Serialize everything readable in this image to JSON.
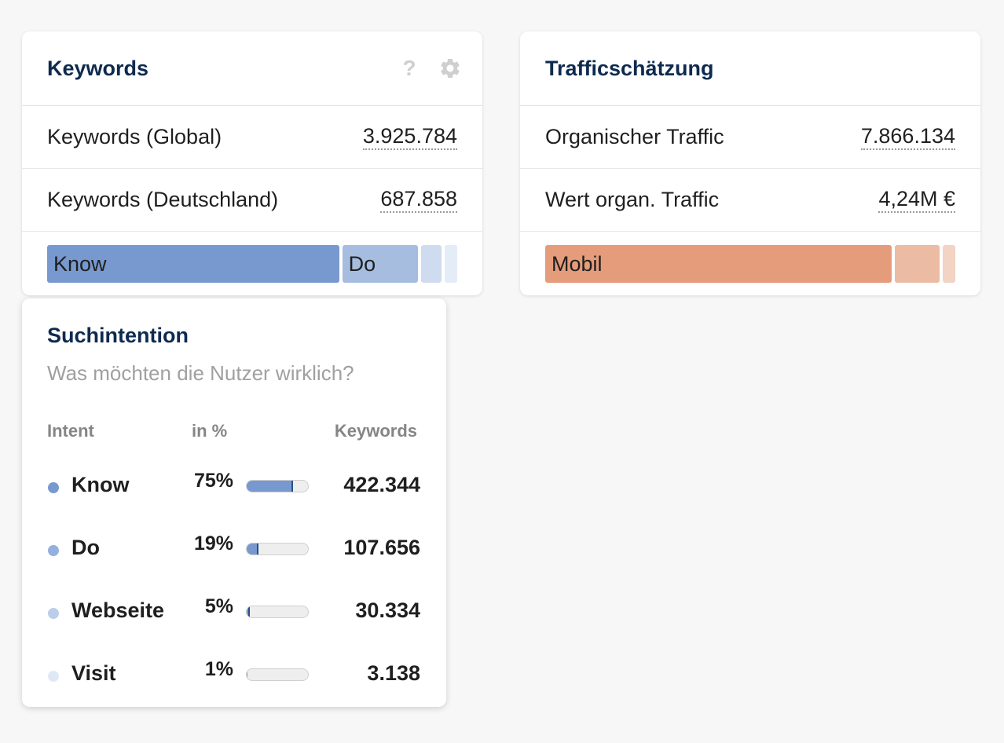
{
  "keywords_card": {
    "title": "Keywords",
    "help_icon": "question-icon",
    "settings_icon": "gear-icon",
    "rows": [
      {
        "label": "Keywords (Global)",
        "value": "3.925.784"
      },
      {
        "label": "Keywords (Deutschland)",
        "value": "687.858"
      }
    ],
    "intent_bar": [
      {
        "label": "Know",
        "share": 75,
        "color": "#7899cf"
      },
      {
        "label": "Do",
        "share": 19,
        "color": "#a6bde0"
      },
      {
        "label": "",
        "share": 5,
        "color": "#cfdcef"
      },
      {
        "label": "",
        "share": 1,
        "color": "#e4ecf7"
      }
    ]
  },
  "traffic_card": {
    "title": "Trafficschätzung",
    "rows": [
      {
        "label": "Organischer Traffic",
        "value": "7.866.134"
      },
      {
        "label": "Wert organ. Traffic",
        "value": "4,24M €"
      }
    ],
    "device_bar": [
      {
        "label": "Mobil",
        "share": 86,
        "color": "#e59c7a"
      },
      {
        "label": "",
        "share": 11,
        "color": "#ecbba3"
      },
      {
        "label": "",
        "share": 3,
        "color": "#f3d3c4"
      }
    ]
  },
  "intent_popup": {
    "title": "Suchintention",
    "subtitle": "Was möchten die Nutzer wirklich?",
    "headers": {
      "intent": "Intent",
      "percent": "in %",
      "keywords": "Keywords"
    },
    "rows": [
      {
        "name": "Know",
        "pct_label": "75%",
        "pct": 75,
        "keywords": "422.344",
        "dot_color": "#7899cf"
      },
      {
        "name": "Do",
        "pct_label": "19%",
        "pct": 19,
        "keywords": "107.656",
        "dot_color": "#94b0dd"
      },
      {
        "name": "Webseite",
        "pct_label": "5%",
        "pct": 5,
        "keywords": "30.334",
        "dot_color": "#bccdea"
      },
      {
        "name": "Visit",
        "pct_label": "1%",
        "pct": 1,
        "keywords": "3.138",
        "dot_color": "#e0e8f6"
      }
    ]
  }
}
